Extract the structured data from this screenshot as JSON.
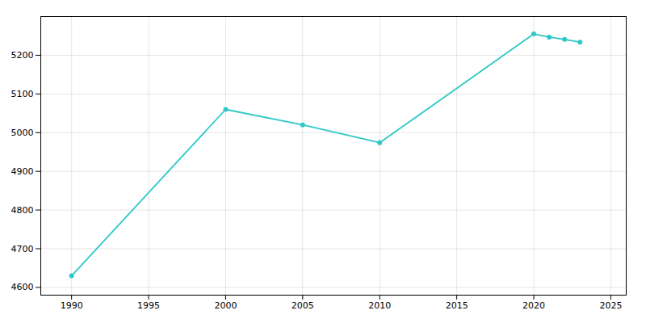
{
  "chart_data": {
    "type": "line",
    "x": [
      1990,
      2000,
      2005,
      2010,
      2020,
      2021,
      2022,
      2023
    ],
    "values": [
      4630,
      5060,
      5020,
      4974,
      5255,
      5247,
      5241,
      5234
    ],
    "color": "#2ec8c8",
    "marker": "circle",
    "xlim": [
      1988,
      2026
    ],
    "ylim": [
      4580,
      5300
    ],
    "xticks": [
      1990,
      1995,
      2000,
      2005,
      2010,
      2015,
      2020,
      2025
    ],
    "yticks": [
      4600,
      4700,
      4800,
      4900,
      5000,
      5100,
      5200
    ],
    "grid": true
  }
}
